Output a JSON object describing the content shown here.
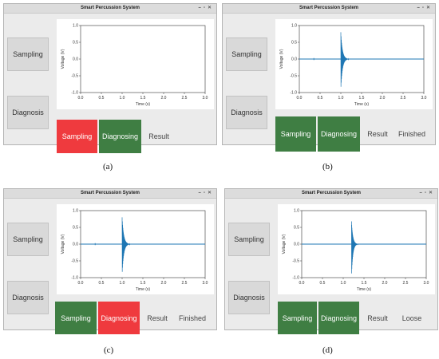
{
  "window_title": "Smart Percussion System",
  "window_controls": [
    "–",
    "▫",
    "✕"
  ],
  "panels": [
    {
      "id": "a",
      "caption": "(a)",
      "sampling_label": "Sampling",
      "diagnosis_label": "Diagnosis",
      "btn_sampling": "Sampling",
      "btn_diagnosing": "Diagnosing",
      "result_label": "Result",
      "result_value": "",
      "sampling_color": "#ef3a3e",
      "diagnosing_color": "#3f7e43"
    },
    {
      "id": "b",
      "caption": "(b)",
      "sampling_label": "Sampling",
      "diagnosis_label": "Diagnosis",
      "btn_sampling": "Sampling",
      "btn_diagnosing": "Diagnosing",
      "result_label": "Result",
      "result_value": "Finished",
      "sampling_color": "#3f7e43",
      "diagnosing_color": "#3f7e43"
    },
    {
      "id": "c",
      "caption": "(c)",
      "sampling_label": "Sampling",
      "diagnosis_label": "Diagnosis",
      "btn_sampling": "Sampling",
      "btn_diagnosing": "Diagnosing",
      "result_label": "Result",
      "result_value": "Finished",
      "sampling_color": "#3f7e43",
      "diagnosing_color": "#ef3a3e"
    },
    {
      "id": "d",
      "caption": "(d)",
      "sampling_label": "Sampling",
      "diagnosis_label": "Diagnosis",
      "btn_sampling": "Sampling",
      "btn_diagnosing": "Diagnosing",
      "result_label": "Result",
      "result_value": "Loose",
      "sampling_color": "#3f7e43",
      "diagnosing_color": "#3f7e43"
    }
  ],
  "chart_data": [
    {
      "panel": "a",
      "type": "line",
      "xlabel": "Time (s)",
      "ylabel": "Voltage (V)",
      "xlim": [
        0.0,
        3.0
      ],
      "ylim": [
        -1.0,
        1.0
      ],
      "xticks": [
        "0.0",
        "0.5",
        "1.0",
        "1.5",
        "2.0",
        "2.5",
        "3.0"
      ],
      "yticks": [
        "1.0",
        "0.5",
        "0.0",
        "-0.5",
        "-1.0"
      ],
      "series": [],
      "color": "#1f77b4"
    },
    {
      "panel": "b",
      "type": "line",
      "xlabel": "Time (s)",
      "ylabel": "Voltage (V)",
      "xlim": [
        0.0,
        3.0
      ],
      "ylim": [
        -1.0,
        1.0
      ],
      "xticks": [
        "0.0",
        "0.5",
        "1.0",
        "1.5",
        "2.0",
        "2.5",
        "3.0"
      ],
      "yticks": [
        "1.0",
        "0.5",
        "0.0",
        "-0.5",
        "-1.0"
      ],
      "series": [
        {
          "impulse_time": 1.0,
          "peak_pos": 0.8,
          "peak_neg": -0.9,
          "decay": 0.12,
          "noise_blip_time": 0.35
        }
      ],
      "color": "#1f77b4"
    },
    {
      "panel": "c",
      "type": "line",
      "xlabel": "Time (s)",
      "ylabel": "Voltage (V)",
      "xlim": [
        0.0,
        3.0
      ],
      "ylim": [
        -1.0,
        1.0
      ],
      "xticks": [
        "0.0",
        "0.5",
        "1.0",
        "1.5",
        "2.0",
        "2.5",
        "3.0"
      ],
      "yticks": [
        "1.0",
        "0.5",
        "0.0",
        "-0.5",
        "-1.0"
      ],
      "series": [
        {
          "impulse_time": 1.0,
          "peak_pos": 0.8,
          "peak_neg": -0.9,
          "decay": 0.12,
          "noise_blip_time": 0.35
        }
      ],
      "color": "#1f77b4"
    },
    {
      "panel": "d",
      "type": "line",
      "xlabel": "Time (s)",
      "ylabel": "Voltage (V)",
      "xlim": [
        0.0,
        3.0
      ],
      "ylim": [
        -1.0,
        1.0
      ],
      "xticks": [
        "0.0",
        "0.5",
        "1.0",
        "1.5",
        "2.0",
        "2.5",
        "3.0"
      ],
      "yticks": [
        "1.0",
        "0.5",
        "0.0",
        "-0.5",
        "-1.0"
      ],
      "series": [
        {
          "impulse_time": 1.2,
          "peak_pos": 0.68,
          "peak_neg": -0.95,
          "decay": 0.1,
          "noise_blip_time": 0.0
        }
      ],
      "color": "#1f77b4"
    }
  ]
}
